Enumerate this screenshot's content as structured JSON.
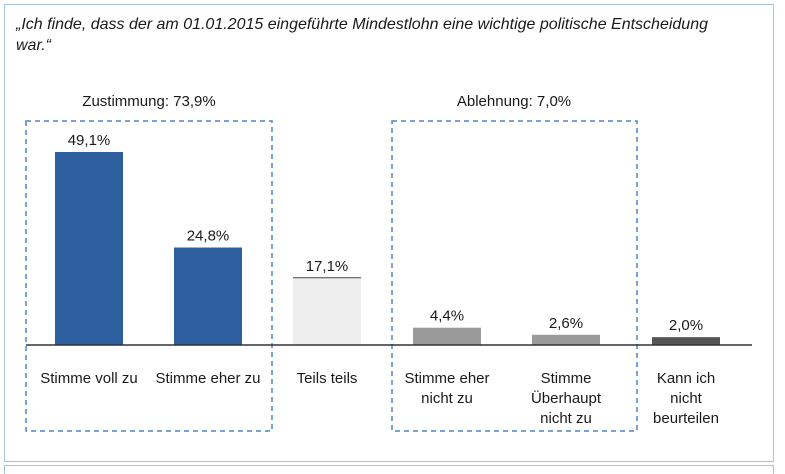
{
  "question": "„Ich finde, dass der am 01.01.2015 eingeführte Mindestlohn eine wichtige politische Entscheidung war.“",
  "colors": {
    "dark_blue": "#2e5f9e",
    "light_gray": "#eeeeee",
    "mid_gray": "#9a9a9a",
    "dark_gray": "#555555",
    "group_border": "#4a86c0",
    "frame": "#a9c3db",
    "baseline": "#333333"
  },
  "chart_data": {
    "type": "bar",
    "categories": [
      [
        "Stimme voll zu"
      ],
      [
        "Stimme eher zu"
      ],
      [
        "Teils teils"
      ],
      [
        "Stimme eher",
        "nicht zu"
      ],
      [
        "Stimme",
        "Überhaupt",
        "nicht  zu"
      ],
      [
        "Kann ich",
        "nicht",
        "beurteilen"
      ]
    ],
    "values": [
      49.1,
      24.8,
      17.1,
      4.4,
      2.6,
      2.0
    ],
    "value_labels": [
      "49,1%",
      "24,8%",
      "17,1%",
      "4,4%",
      "2,6%",
      "2,0%"
    ],
    "bar_colors": [
      "#2e5f9e",
      "#2e5f9e",
      "#eeeeee",
      "#9a9a9a",
      "#9a9a9a",
      "#555555"
    ],
    "groups": [
      {
        "label": "Zustimmung: 73,9%",
        "members": [
          0,
          1
        ]
      },
      {
        "label": "Ablehnung: 7,0%",
        "members": [
          3,
          4
        ]
      }
    ],
    "ylim": [
      0,
      49.1
    ],
    "grid": false,
    "title": "",
    "xlabel": "",
    "ylabel": ""
  }
}
